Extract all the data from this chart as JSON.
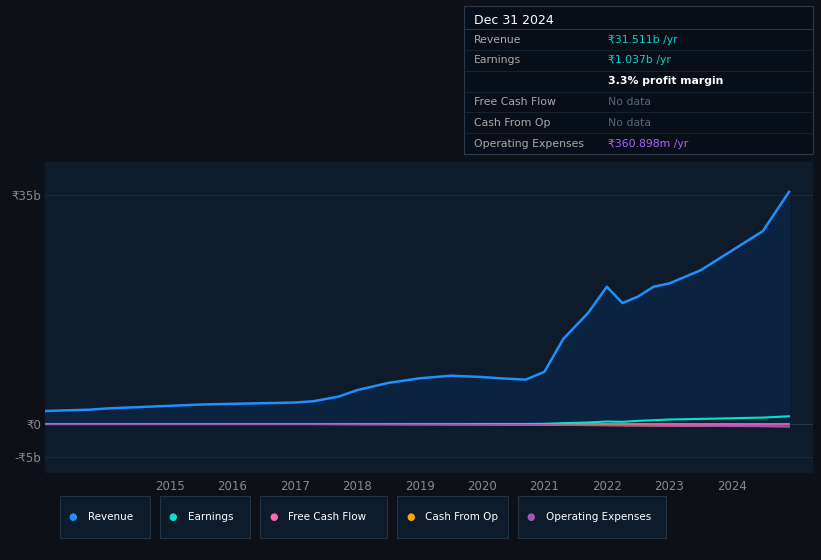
{
  "background_color": "#0d1117",
  "plot_bg_color": "#0d1b2a",
  "grid_color": "#1e2d3d",
  "years": [
    2013.0,
    2013.3,
    2013.7,
    2014.0,
    2014.5,
    2015.0,
    2015.5,
    2016.0,
    2016.5,
    2017.0,
    2017.3,
    2017.7,
    2018.0,
    2018.5,
    2019.0,
    2019.5,
    2020.0,
    2020.3,
    2020.7,
    2021.0,
    2021.3,
    2021.7,
    2022.0,
    2022.25,
    2022.5,
    2022.75,
    2023.0,
    2023.5,
    2024.0,
    2024.5,
    2024.92
  ],
  "revenue": [
    2.0,
    2.1,
    2.2,
    2.4,
    2.6,
    2.8,
    3.0,
    3.1,
    3.2,
    3.3,
    3.5,
    4.2,
    5.2,
    6.3,
    7.0,
    7.4,
    7.2,
    7.0,
    6.8,
    8.0,
    13.0,
    17.0,
    21.0,
    18.5,
    19.5,
    21.0,
    21.5,
    23.5,
    26.5,
    29.5,
    35.5
  ],
  "earnings": [
    0.02,
    0.02,
    0.02,
    0.02,
    0.02,
    0.02,
    0.02,
    0.02,
    0.02,
    0.02,
    0.02,
    0.02,
    0.02,
    0.02,
    0.02,
    0.02,
    0.02,
    0.02,
    0.02,
    0.05,
    0.15,
    0.25,
    0.4,
    0.35,
    0.5,
    0.6,
    0.7,
    0.8,
    0.9,
    1.0,
    1.2
  ],
  "free_cash_flow": [
    0.0,
    0.0,
    0.0,
    0.0,
    0.0,
    0.0,
    0.0,
    0.0,
    0.0,
    0.0,
    0.0,
    0.0,
    0.0,
    0.0,
    0.0,
    0.0,
    0.0,
    0.0,
    0.0,
    0.0,
    0.0,
    0.0,
    0.0,
    0.0,
    0.0,
    0.0,
    0.0,
    0.0,
    0.0,
    0.0,
    0.0
  ],
  "cash_from_op": [
    -0.02,
    -0.02,
    -0.02,
    -0.02,
    -0.02,
    -0.02,
    -0.02,
    -0.02,
    -0.02,
    -0.02,
    -0.02,
    -0.03,
    -0.04,
    -0.05,
    -0.06,
    -0.07,
    -0.08,
    -0.09,
    -0.1,
    -0.12,
    -0.14,
    -0.16,
    -0.18,
    -0.2,
    -0.22,
    -0.24,
    -0.26,
    -0.28,
    -0.3,
    -0.32,
    -0.36
  ],
  "operating_expenses": [
    -0.01,
    -0.01,
    -0.01,
    -0.01,
    -0.01,
    -0.01,
    -0.01,
    -0.01,
    -0.01,
    -0.01,
    -0.01,
    -0.02,
    -0.03,
    -0.04,
    -0.05,
    -0.06,
    -0.08,
    -0.09,
    -0.1,
    -0.12,
    -0.15,
    -0.18,
    -0.2,
    -0.22,
    -0.24,
    -0.26,
    -0.28,
    -0.3,
    -0.32,
    -0.34,
    -0.36
  ],
  "ylim": [
    -7.5,
    40
  ],
  "yticks": [
    -5,
    0,
    35
  ],
  "ytick_labels": [
    "-₹5b",
    "₹0",
    "₹35b"
  ],
  "xtick_years": [
    2015,
    2016,
    2017,
    2018,
    2019,
    2020,
    2021,
    2022,
    2023,
    2024
  ],
  "revenue_color": "#1e90ff",
  "revenue_fill": "#0a2a50",
  "earnings_color": "#00e5cc",
  "free_cash_flow_color": "#ff69b4",
  "cash_from_op_color": "#ffa500",
  "operating_expenses_color": "#9b59b6",
  "legend_bg": "#0d1b2a",
  "legend_border": "#2a3a4a",
  "box_bg": "#080e17",
  "box_border": "#2a3a4a",
  "box_title_sep": "#2a3a4a",
  "box_row_sep": "#1a2a3a"
}
